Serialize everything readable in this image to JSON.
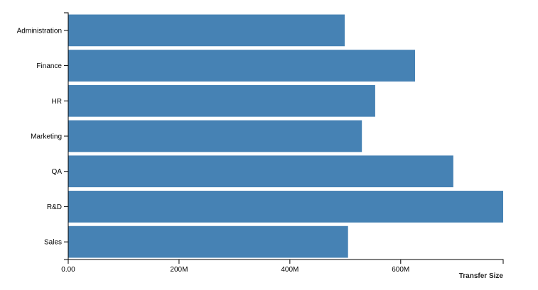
{
  "chart_data": {
    "type": "bar",
    "orientation": "horizontal",
    "categories": [
      "Administration",
      "Finance",
      "HR",
      "Marketing",
      "QA",
      "R&D",
      "Sales"
    ],
    "values": [
      499,
      626,
      554,
      530,
      695,
      785,
      505
    ],
    "unit": "M",
    "xlabel": "Transfer Size",
    "ylabel": "",
    "xlim": [
      0,
      785
    ],
    "xticks": [
      0,
      200,
      400,
      600
    ],
    "xtick_labels": [
      "0.00",
      "200M",
      "400M",
      "600M"
    ],
    "bar_color": "#4682b4",
    "grid": false
  }
}
